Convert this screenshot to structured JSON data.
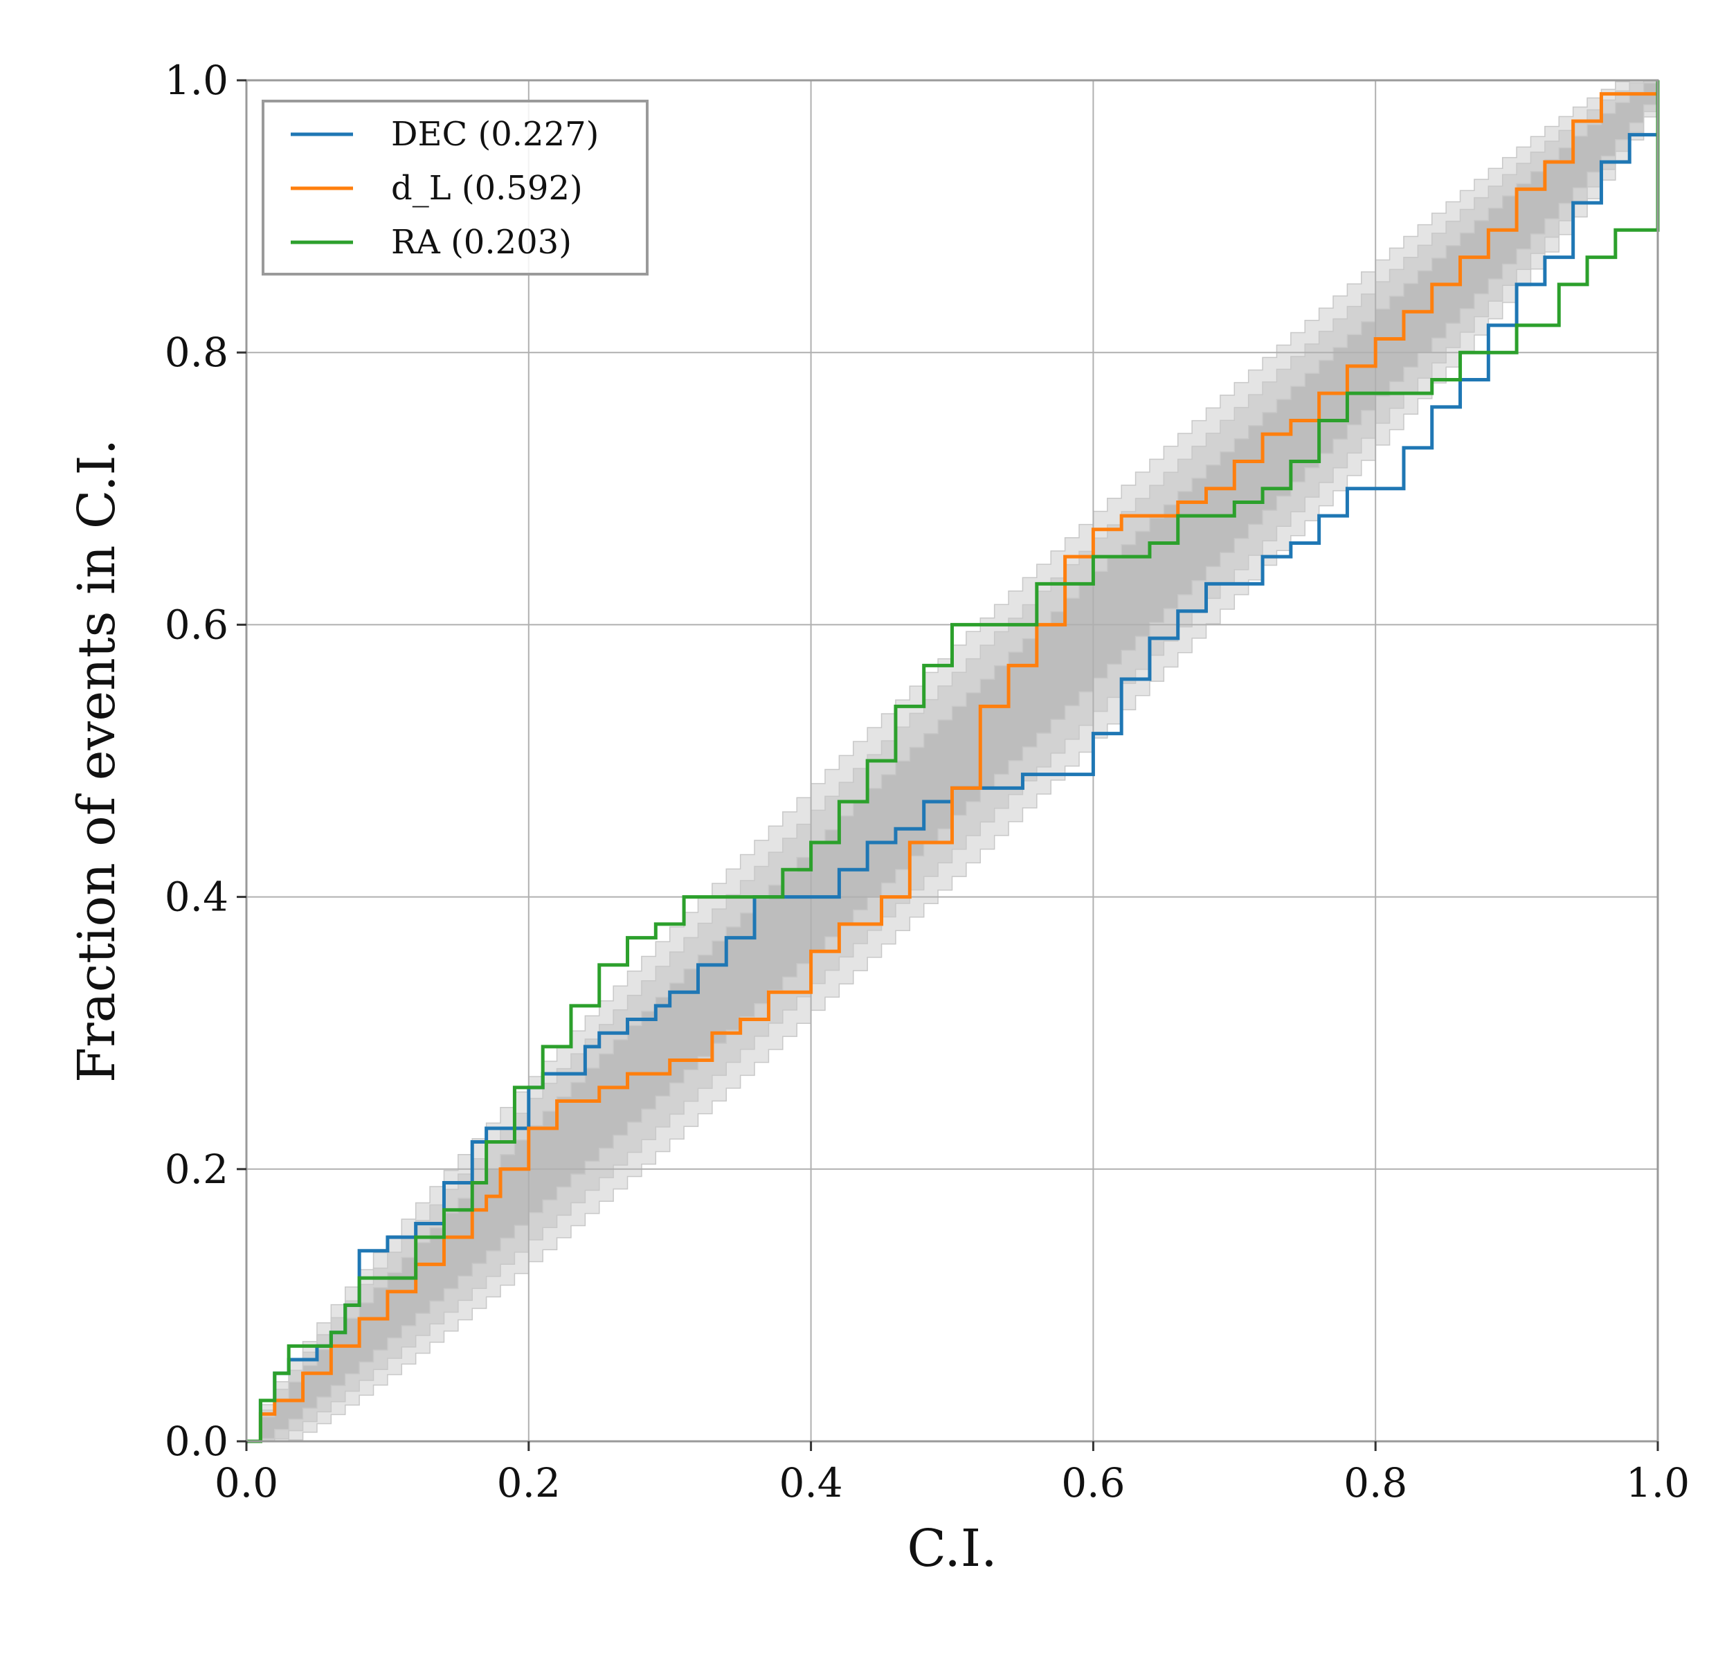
{
  "chart_data": {
    "type": "line",
    "title": "",
    "xlabel": "C.I.",
    "ylabel": "Fraction of events in C.I.",
    "xlim": [
      0.0,
      1.0
    ],
    "ylim": [
      0.0,
      1.0
    ],
    "xticks": [
      "0.0",
      "0.2",
      "0.4",
      "0.6",
      "0.8",
      "1.0"
    ],
    "yticks": [
      "0.0",
      "0.2",
      "0.4",
      "0.6",
      "0.8",
      "1.0"
    ],
    "grid": true,
    "legend_position": "upper-left",
    "legend": [
      {
        "label": "DEC (0.227)",
        "color": "#1f77b4"
      },
      {
        "label": "d_L (0.592)",
        "color": "#ff7f0e"
      },
      {
        "label": "RA (0.203)",
        "color": "#2ca02c"
      }
    ],
    "confidence_bands": [
      {
        "name": "outer",
        "color": "#e4e4e4",
        "halfwidth_peak": 0.085
      },
      {
        "name": "middle",
        "color": "#d2d2d2",
        "halfwidth_peak": 0.065
      },
      {
        "name": "inner",
        "color": "#bdbdbd",
        "halfwidth_peak": 0.04
      }
    ],
    "series": [
      {
        "name": "DEC (0.227)",
        "color": "#1f77b4",
        "x": [
          0.0,
          0.01,
          0.02,
          0.03,
          0.05,
          0.06,
          0.07,
          0.08,
          0.1,
          0.12,
          0.14,
          0.16,
          0.17,
          0.19,
          0.2,
          0.21,
          0.24,
          0.25,
          0.27,
          0.29,
          0.3,
          0.32,
          0.34,
          0.36,
          0.4,
          0.42,
          0.44,
          0.46,
          0.48,
          0.5,
          0.55,
          0.6,
          0.62,
          0.64,
          0.66,
          0.68,
          0.7,
          0.72,
          0.74,
          0.76,
          0.78,
          0.8,
          0.82,
          0.84,
          0.86,
          0.88,
          0.9,
          0.92,
          0.94,
          0.96,
          0.98,
          1.0
        ],
        "y": [
          0.0,
          0.03,
          0.05,
          0.06,
          0.07,
          0.08,
          0.1,
          0.14,
          0.15,
          0.16,
          0.19,
          0.22,
          0.23,
          0.23,
          0.26,
          0.27,
          0.29,
          0.3,
          0.31,
          0.32,
          0.33,
          0.35,
          0.37,
          0.4,
          0.4,
          0.42,
          0.44,
          0.45,
          0.47,
          0.48,
          0.49,
          0.52,
          0.56,
          0.59,
          0.61,
          0.63,
          0.63,
          0.65,
          0.66,
          0.68,
          0.7,
          0.7,
          0.73,
          0.76,
          0.78,
          0.82,
          0.85,
          0.87,
          0.91,
          0.94,
          0.96,
          1.0
        ]
      },
      {
        "name": "d_L (0.592)",
        "color": "#ff7f0e",
        "x": [
          0.0,
          0.01,
          0.02,
          0.04,
          0.06,
          0.08,
          0.1,
          0.12,
          0.14,
          0.16,
          0.17,
          0.18,
          0.2,
          0.22,
          0.25,
          0.27,
          0.3,
          0.33,
          0.35,
          0.37,
          0.4,
          0.42,
          0.45,
          0.47,
          0.5,
          0.52,
          0.54,
          0.56,
          0.58,
          0.6,
          0.62,
          0.65,
          0.66,
          0.68,
          0.7,
          0.72,
          0.74,
          0.76,
          0.78,
          0.8,
          0.82,
          0.84,
          0.86,
          0.88,
          0.9,
          0.92,
          0.94,
          0.96,
          1.0
        ],
        "y": [
          0.0,
          0.02,
          0.03,
          0.05,
          0.07,
          0.09,
          0.11,
          0.13,
          0.15,
          0.17,
          0.18,
          0.2,
          0.23,
          0.25,
          0.26,
          0.27,
          0.28,
          0.3,
          0.31,
          0.33,
          0.36,
          0.38,
          0.4,
          0.44,
          0.48,
          0.54,
          0.57,
          0.6,
          0.65,
          0.67,
          0.68,
          0.68,
          0.69,
          0.7,
          0.72,
          0.74,
          0.75,
          0.77,
          0.79,
          0.81,
          0.83,
          0.85,
          0.87,
          0.89,
          0.92,
          0.94,
          0.97,
          0.99,
          1.0
        ]
      },
      {
        "name": "RA (0.203)",
        "color": "#2ca02c",
        "x": [
          0.0,
          0.01,
          0.02,
          0.03,
          0.06,
          0.07,
          0.08,
          0.1,
          0.12,
          0.14,
          0.16,
          0.17,
          0.19,
          0.21,
          0.23,
          0.25,
          0.27,
          0.29,
          0.31,
          0.34,
          0.36,
          0.38,
          0.4,
          0.42,
          0.44,
          0.46,
          0.48,
          0.5,
          0.52,
          0.56,
          0.6,
          0.64,
          0.66,
          0.7,
          0.72,
          0.74,
          0.76,
          0.78,
          0.8,
          0.82,
          0.84,
          0.86,
          0.88,
          0.9,
          0.93,
          0.95,
          0.97,
          1.0
        ],
        "y": [
          0.0,
          0.03,
          0.05,
          0.07,
          0.08,
          0.1,
          0.12,
          0.12,
          0.15,
          0.17,
          0.19,
          0.22,
          0.26,
          0.29,
          0.32,
          0.35,
          0.37,
          0.38,
          0.4,
          0.4,
          0.4,
          0.42,
          0.44,
          0.47,
          0.5,
          0.54,
          0.57,
          0.6,
          0.6,
          0.63,
          0.65,
          0.66,
          0.68,
          0.69,
          0.7,
          0.72,
          0.75,
          0.77,
          0.77,
          0.77,
          0.78,
          0.8,
          0.8,
          0.82,
          0.85,
          0.87,
          0.89,
          1.0
        ]
      }
    ]
  }
}
